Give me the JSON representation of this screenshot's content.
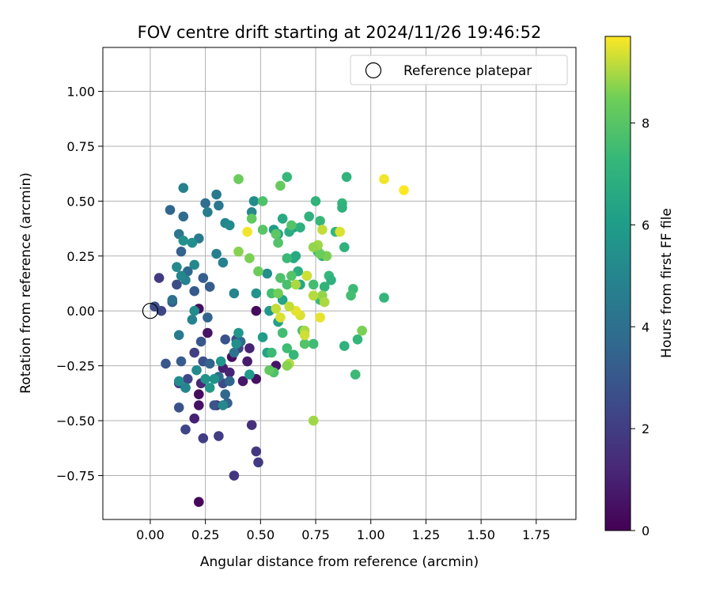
{
  "chart_data": {
    "type": "scatter",
    "title": "FOV centre drift starting at 2024/11/26 19:46:52",
    "xlabel": "Angular distance from reference (arcmin)",
    "ylabel": "Rotation from reference (arcmin)",
    "xlim": [
      -0.215,
      1.93
    ],
    "ylim": [
      -0.95,
      1.2
    ],
    "x_ticks": [
      0.0,
      0.25,
      0.5,
      0.75,
      1.0,
      1.25,
      1.5,
      1.75
    ],
    "x_tick_labels": [
      "0.00",
      "0.25",
      "0.50",
      "0.75",
      "1.00",
      "1.25",
      "1.50",
      "1.75"
    ],
    "y_ticks": [
      -0.75,
      -0.5,
      -0.25,
      0.0,
      0.25,
      0.5,
      0.75,
      1.0
    ],
    "y_tick_labels": [
      "−0.75",
      "−0.50",
      "−0.25",
      "0.00",
      "0.25",
      "0.50",
      "0.75",
      "1.00"
    ],
    "grid": true,
    "legend": {
      "placement": "top-right",
      "entries": [
        "Reference platepar"
      ]
    },
    "reference_point": {
      "x": 0.0,
      "y": 0.0
    },
    "colorbar": {
      "label": "Hours from first FF file",
      "colormap": "viridis",
      "min": 0,
      "max": 9.7,
      "ticks": [
        0,
        2,
        4,
        6,
        8
      ],
      "tick_labels": [
        "0",
        "2",
        "4",
        "6",
        "8"
      ]
    },
    "series": [
      {
        "points": [
          [
            0.22,
            -0.87,
            0.2
          ],
          [
            0.22,
            -0.43,
            0.5
          ],
          [
            0.22,
            -0.38,
            0.3
          ],
          [
            0.2,
            -0.49,
            1.0
          ],
          [
            0.23,
            -0.33,
            1.2
          ],
          [
            0.26,
            -0.1,
            0.6
          ],
          [
            0.22,
            0.01,
            0.4
          ],
          [
            0.3,
            -0.43,
            0.8
          ],
          [
            0.33,
            -0.26,
            0.9
          ],
          [
            0.37,
            -0.21,
            0.4
          ],
          [
            0.36,
            -0.28,
            1.1
          ],
          [
            0.42,
            -0.32,
            0.7
          ],
          [
            0.45,
            -0.17,
            1.0
          ],
          [
            0.48,
            -0.31,
            0.5
          ],
          [
            0.48,
            0.0,
            0.3
          ],
          [
            0.44,
            -0.23,
            0.8
          ],
          [
            0.57,
            -0.25,
            0.6
          ],
          [
            0.46,
            -0.52,
            1.5
          ],
          [
            0.48,
            -0.64,
            1.8
          ],
          [
            0.49,
            -0.69,
            1.9
          ],
          [
            0.38,
            -0.75,
            1.7
          ],
          [
            0.31,
            -0.57,
            2.0
          ],
          [
            0.24,
            -0.58,
            2.0
          ],
          [
            0.16,
            -0.54,
            2.3
          ],
          [
            0.04,
            0.15,
            1.9
          ],
          [
            0.05,
            0.0,
            2.3
          ],
          [
            0.02,
            0.02,
            2.6
          ],
          [
            0.13,
            -0.33,
            2.2
          ],
          [
            0.17,
            -0.31,
            2.4
          ],
          [
            0.2,
            -0.19,
            2.1
          ],
          [
            0.24,
            -0.23,
            2.7
          ],
          [
            0.29,
            -0.43,
            2.9
          ],
          [
            0.33,
            -0.33,
            2.5
          ],
          [
            0.34,
            -0.13,
            2.8
          ],
          [
            0.4,
            -0.17,
            2.3
          ],
          [
            0.39,
            -0.13,
            2.6
          ],
          [
            0.13,
            -0.44,
            2.8
          ],
          [
            0.14,
            -0.23,
            3.2
          ],
          [
            0.1,
            0.04,
            3.1
          ],
          [
            0.12,
            0.12,
            2.6
          ],
          [
            0.07,
            -0.24,
            3.0
          ],
          [
            0.16,
            -0.35,
            3.3
          ],
          [
            0.23,
            -0.14,
            3.0
          ],
          [
            0.27,
            -0.24,
            3.5
          ],
          [
            0.34,
            -0.38,
            3.7
          ],
          [
            0.35,
            -0.42,
            3.4
          ],
          [
            0.31,
            -0.3,
            3.9
          ],
          [
            0.36,
            -0.32,
            3.6
          ],
          [
            0.41,
            -0.14,
            3.8
          ],
          [
            0.38,
            -0.19,
            4.1
          ],
          [
            0.26,
            -0.03,
            3.5
          ],
          [
            0.27,
            0.11,
            3.2
          ],
          [
            0.2,
            0.09,
            3.1
          ],
          [
            0.17,
            0.18,
            3.7
          ],
          [
            0.14,
            0.27,
            3.4
          ],
          [
            0.1,
            0.05,
            4.0
          ],
          [
            0.09,
            0.46,
            3.6
          ],
          [
            0.15,
            0.43,
            3.8
          ],
          [
            0.25,
            0.49,
            3.9
          ],
          [
            0.24,
            0.15,
            3.3
          ],
          [
            0.13,
            0.35,
            4.3
          ],
          [
            0.22,
            0.33,
            4.5
          ],
          [
            0.3,
            0.26,
            4.7
          ],
          [
            0.3,
            0.53,
            4.5
          ],
          [
            0.31,
            0.48,
            4.4
          ],
          [
            0.34,
            0.4,
            5.0
          ],
          [
            0.33,
            0.22,
            4.8
          ],
          [
            0.36,
            0.39,
            5.2
          ],
          [
            0.38,
            0.08,
            5.0
          ],
          [
            0.47,
            0.5,
            5.3
          ],
          [
            0.46,
            0.45,
            5.1
          ],
          [
            0.26,
            0.45,
            4.6
          ],
          [
            0.2,
            0.21,
            5.1
          ],
          [
            0.19,
            0.31,
            5.4
          ],
          [
            0.16,
            0.14,
            4.8
          ],
          [
            0.14,
            0.16,
            5.0
          ],
          [
            0.12,
            0.2,
            5.2
          ],
          [
            0.15,
            0.56,
            4.8
          ],
          [
            0.15,
            0.32,
            5.5
          ],
          [
            0.2,
            0.0,
            5.3
          ],
          [
            0.19,
            -0.04,
            4.9
          ],
          [
            0.13,
            -0.11,
            4.5
          ],
          [
            0.13,
            -0.32,
            5.3
          ],
          [
            0.16,
            -0.35,
            5.0
          ],
          [
            0.21,
            -0.27,
            5.2
          ],
          [
            0.25,
            -0.31,
            5.6
          ],
          [
            0.27,
            -0.35,
            5.8
          ],
          [
            0.29,
            -0.31,
            5.5
          ],
          [
            0.33,
            -0.43,
            5.1
          ],
          [
            0.32,
            -0.23,
            5.7
          ],
          [
            0.39,
            -0.15,
            5.4
          ],
          [
            0.4,
            -0.1,
            5.7
          ],
          [
            0.48,
            0.08,
            5.6
          ],
          [
            0.53,
            0.17,
            5.4
          ],
          [
            0.54,
            0.0,
            5.8
          ],
          [
            0.56,
            0.37,
            5.9
          ],
          [
            0.51,
            -0.12,
            6.0
          ],
          [
            0.53,
            -0.19,
            6.3
          ],
          [
            0.45,
            -0.29,
            5.9
          ],
          [
            0.58,
            0.35,
            6.1
          ],
          [
            0.58,
            -0.05,
            6.2
          ],
          [
            0.6,
            0.05,
            6.4
          ],
          [
            0.65,
            0.24,
            6.5
          ],
          [
            0.6,
            0.42,
            6.6
          ],
          [
            0.65,
            0.38,
            6.3
          ],
          [
            0.68,
            0.38,
            6.9
          ],
          [
            0.63,
            0.36,
            6.7
          ],
          [
            0.66,
            0.25,
            6.6
          ],
          [
            0.67,
            0.18,
            6.8
          ],
          [
            0.68,
            0.12,
            6.5
          ],
          [
            0.72,
            0.43,
            7.0
          ],
          [
            0.75,
            0.5,
            7.1
          ],
          [
            0.77,
            0.41,
            7.3
          ],
          [
            0.76,
            0.27,
            7.2
          ],
          [
            0.78,
            0.25,
            6.9
          ],
          [
            0.79,
            0.11,
            7.1
          ],
          [
            0.81,
            0.16,
            7.3
          ],
          [
            0.82,
            0.14,
            7.0
          ],
          [
            0.77,
            0.05,
            7.4
          ],
          [
            0.74,
            0.12,
            7.6
          ],
          [
            0.71,
            0.16,
            7.5
          ],
          [
            0.87,
            0.49,
            7.2
          ],
          [
            0.87,
            0.47,
            7.0
          ],
          [
            0.89,
            0.61,
            7.1
          ],
          [
            0.88,
            0.29,
            7.0
          ],
          [
            0.84,
            0.36,
            7.2
          ],
          [
            0.92,
            0.1,
            7.4
          ],
          [
            0.91,
            0.07,
            7.6
          ],
          [
            0.88,
            -0.16,
            7.0
          ],
          [
            0.94,
            -0.13,
            7.2
          ],
          [
            0.93,
            -0.29,
            7.4
          ],
          [
            0.74,
            -0.15,
            7.5
          ],
          [
            0.7,
            -0.15,
            7.9
          ],
          [
            0.69,
            -0.09,
            7.7
          ],
          [
            0.65,
            -0.2,
            7.3
          ],
          [
            0.62,
            -0.17,
            7.5
          ],
          [
            0.6,
            -0.1,
            7.6
          ],
          [
            0.56,
            -0.28,
            7.8
          ],
          [
            0.55,
            -0.19,
            7.4
          ],
          [
            0.55,
            0.08,
            7.6
          ],
          [
            0.59,
            0.15,
            7.8
          ],
          [
            0.62,
            0.12,
            7.7
          ],
          [
            0.64,
            0.16,
            7.9
          ],
          [
            0.62,
            0.24,
            7.4
          ],
          [
            0.58,
            0.31,
            7.9
          ],
          [
            0.57,
            0.35,
            8.1
          ],
          [
            0.64,
            0.39,
            7.9
          ],
          [
            0.59,
            0.57,
            8.3
          ],
          [
            0.62,
            0.61,
            7.3
          ],
          [
            0.51,
            0.37,
            8.0
          ],
          [
            0.51,
            0.5,
            7.8
          ],
          [
            0.46,
            0.42,
            8.2
          ],
          [
            0.49,
            0.18,
            8.4
          ],
          [
            0.45,
            0.24,
            8.6
          ],
          [
            0.4,
            0.27,
            8.7
          ],
          [
            0.4,
            0.6,
            8.4
          ],
          [
            1.06,
            0.06,
            7.2
          ],
          [
            0.96,
            -0.09,
            8.6
          ],
          [
            0.8,
            0.25,
            8.6
          ],
          [
            0.78,
            0.07,
            8.8
          ],
          [
            0.79,
            0.04,
            9.0
          ],
          [
            0.77,
            0.26,
            8.4
          ],
          [
            0.76,
            0.3,
            8.9
          ],
          [
            0.74,
            0.07,
            9.1
          ],
          [
            0.71,
            0.16,
            9.3
          ],
          [
            0.78,
            0.37,
            9.2
          ],
          [
            0.86,
            0.36,
            9.4
          ],
          [
            0.77,
            -0.03,
            9.5
          ],
          [
            0.74,
            0.29,
            8.8
          ],
          [
            0.74,
            -0.5,
            8.9
          ],
          [
            0.7,
            -0.09,
            9.0
          ],
          [
            0.7,
            -0.11,
            9.3
          ],
          [
            0.68,
            -0.02,
            9.4
          ],
          [
            0.66,
            0.0,
            9.5
          ],
          [
            0.66,
            0.12,
            9.0
          ],
          [
            0.63,
            0.02,
            9.2
          ],
          [
            0.63,
            -0.24,
            9.1
          ],
          [
            0.57,
            0.01,
            9.2
          ],
          [
            0.59,
            -0.03,
            9.4
          ],
          [
            0.44,
            0.36,
            9.6
          ],
          [
            1.06,
            0.6,
            9.6
          ],
          [
            1.15,
            0.55,
            9.7
          ],
          [
            0.58,
            0.08,
            8.5
          ],
          [
            0.54,
            -0.27,
            8.2
          ],
          [
            0.62,
            -0.25,
            8.7
          ]
        ]
      }
    ]
  }
}
